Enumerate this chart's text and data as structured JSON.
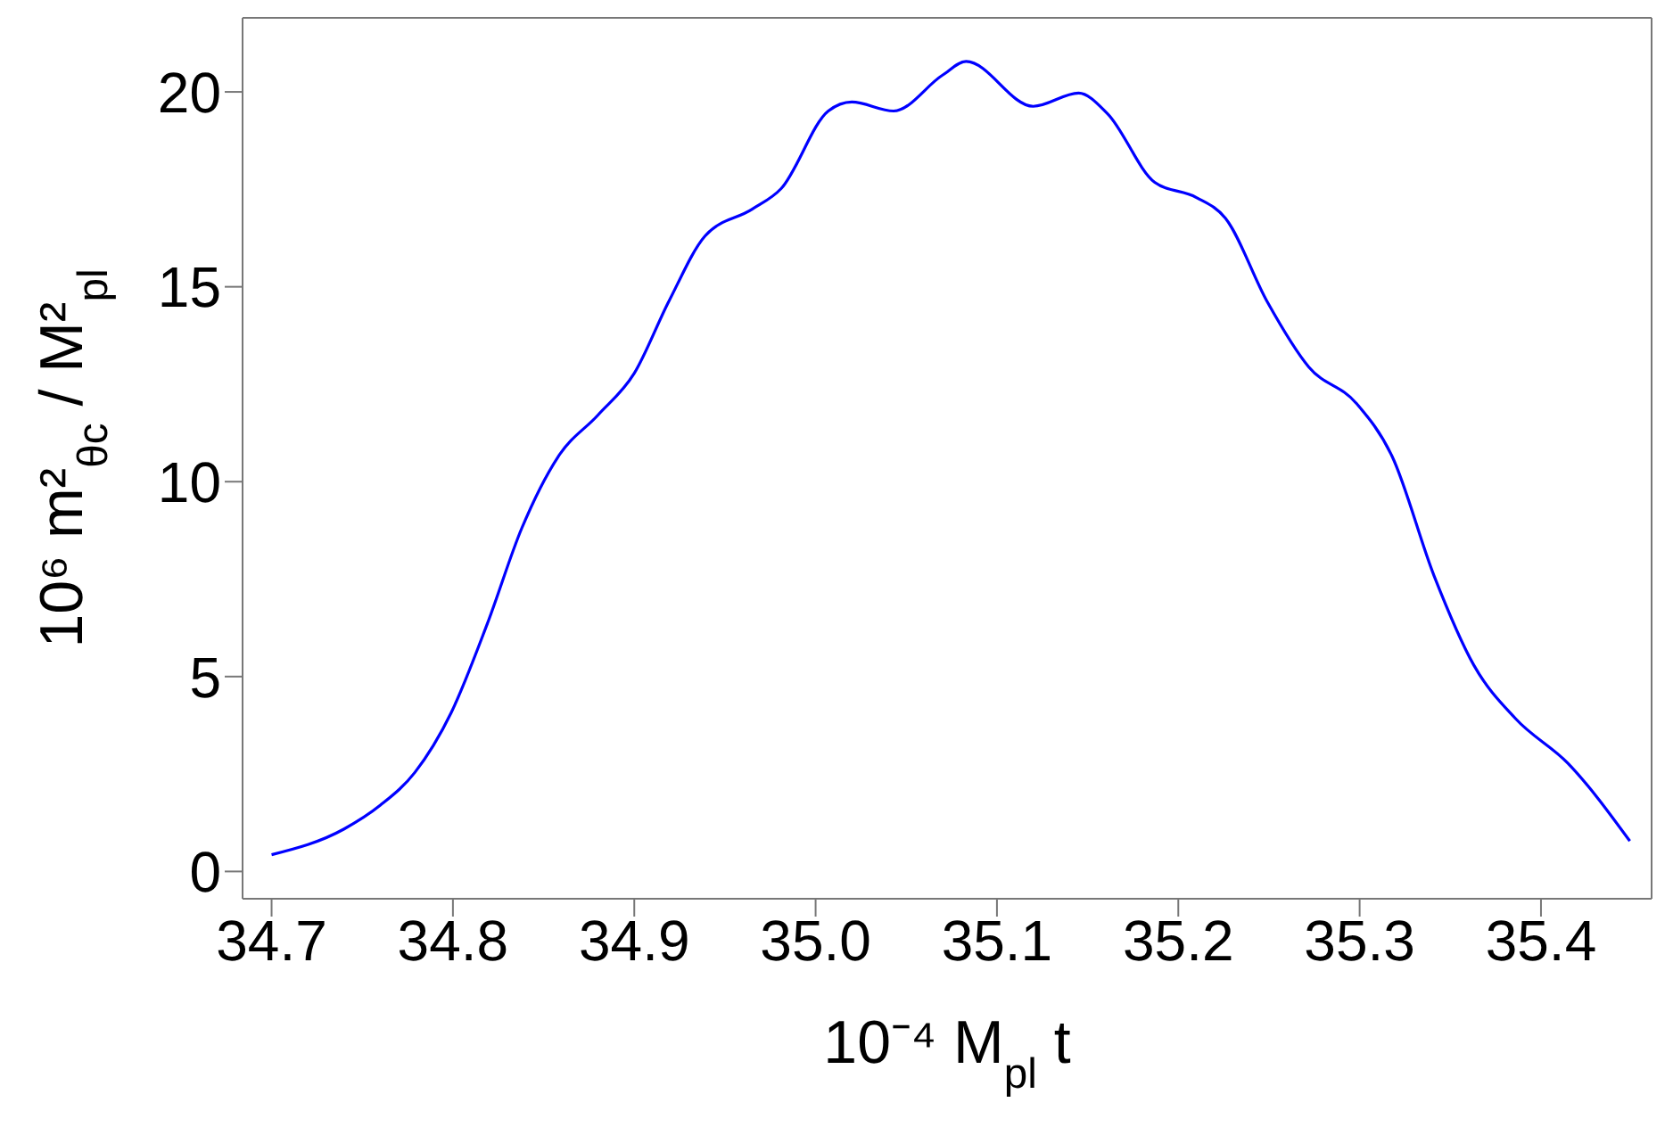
{
  "chart_data": {
    "type": "line",
    "xlabel": "10⁻⁴ M$_{pl}$ t",
    "ylabel": "10⁶ m²$_{θc}$ / M²$_{pl}$",
    "x": [
      34.7,
      34.74,
      34.76,
      34.779,
      34.799,
      34.819,
      34.838,
      34.858,
      34.88,
      34.9,
      34.919,
      34.939,
      34.965,
      34.981,
      35.007,
      35.02,
      35.043,
      35.07,
      35.083,
      35.12,
      35.145,
      35.161,
      35.187,
      35.21,
      35.226,
      35.249,
      35.272,
      35.298,
      35.318,
      35.341,
      35.363,
      35.386,
      35.415,
      35.449
    ],
    "series": [
      {
        "color": "#0000ff",
        "values": [
          0.43,
          1.09,
          1.7,
          2.54,
          4.07,
          6.36,
          8.81,
          10.64,
          11.71,
          12.78,
          14.62,
          16.3,
          16.99,
          17.52,
          19.51,
          19.74,
          19.51,
          20.43,
          20.78,
          19.63,
          19.97,
          19.44,
          17.68,
          17.29,
          16.76,
          14.62,
          12.94,
          12.02,
          10.64,
          7.59,
          5.29,
          3.92,
          2.77,
          0.78
        ]
      }
    ],
    "xlim": [
      34.684,
      35.461
    ],
    "ylim": [
      -0.7,
      21.9
    ],
    "xticks": [
      34.7,
      34.8,
      34.9,
      {
        "value": 35,
        "label": "35.0"
      },
      35.1,
      35.2,
      35.3,
      35.4
    ],
    "yticks": [
      0,
      5,
      10,
      15,
      20
    ],
    "grid": false,
    "marker": "none",
    "line_style": "solid",
    "legend": false
  }
}
